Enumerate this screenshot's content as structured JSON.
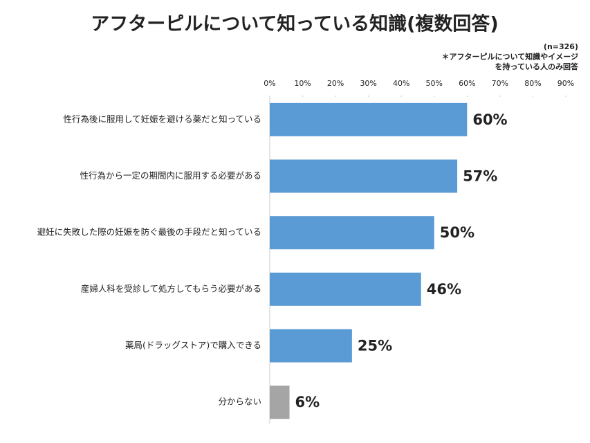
{
  "chart_data": {
    "type": "bar",
    "orientation": "horizontal",
    "title": "アフターピルについて知っている知識(複数回答)",
    "notes": [
      "(n=326)",
      "＊アフターピルについて知識やイメージ",
      "を持っている人のみ回答"
    ],
    "categories": [
      "性行為後に服用して妊娠を避ける薬だと知っている",
      "性行為から一定の期間内に服用する必要がある",
      "避妊に失敗した際の妊娠を防ぐ最後の手段だと知っている",
      "産婦人科を受診して処方してもらう必要がある",
      "薬局(ドラッグストア)で購入できる",
      "分からない"
    ],
    "values": [
      60,
      57,
      50,
      46,
      25,
      6
    ],
    "value_labels": [
      "60%",
      "57%",
      "50%",
      "46%",
      "25%",
      "6%"
    ],
    "colors": [
      "#5b9bd5",
      "#5b9bd5",
      "#5b9bd5",
      "#5b9bd5",
      "#5b9bd5",
      "#a5a5a5"
    ],
    "label_colors": [
      "#3f7fc3",
      "#3f7fc3",
      "#3f7fc3",
      "#3f7fc3",
      "#3f7fc3",
      "#8c8c8c"
    ],
    "xlim": [
      0,
      90
    ],
    "xticks": [
      {
        "value": 0,
        "label": "0%"
      },
      {
        "value": 10,
        "label": "10%"
      },
      {
        "value": 20,
        "label": "20%"
      },
      {
        "value": 30,
        "label": "30%"
      },
      {
        "value": 40,
        "label": "40%"
      },
      {
        "value": 50,
        "label": "50%"
      },
      {
        "value": 60,
        "label": "60%"
      },
      {
        "value": 70,
        "label": "70%"
      },
      {
        "value": 80,
        "label": "80%"
      },
      {
        "value": 90,
        "label": "90%"
      }
    ],
    "grid": false
  }
}
